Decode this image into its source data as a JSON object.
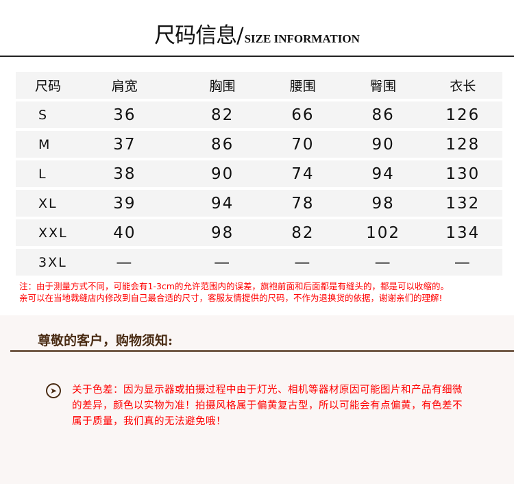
{
  "title": {
    "zh": "尺码信息/",
    "en": "SIZE INFORMATION"
  },
  "table": {
    "headers": [
      "尺码",
      "肩宽",
      "胸围",
      "腰围",
      "臀围",
      "衣长"
    ],
    "rows": [
      [
        "S",
        "36",
        "82",
        "66",
        "86",
        "126"
      ],
      [
        "M",
        "37",
        "86",
        "70",
        "90",
        "128"
      ],
      [
        "L",
        "38",
        "90",
        "74",
        "94",
        "130"
      ],
      [
        "XL",
        "39",
        "94",
        "78",
        "98",
        "132"
      ],
      [
        "XXL",
        "40",
        "98",
        "82",
        "102",
        "134"
      ],
      [
        "3XL",
        "—",
        "—",
        "—",
        "—",
        "—"
      ]
    ]
  },
  "note": {
    "line1": "注：由于测量方式不同，可能会有1-3cm的允许范围内的误差，旗袍前面和后面都是有缝头的，都是可以收缩的。",
    "line2": "亲可以在当地裁缝店内修改到自己最合适的尺寸，客服友情提供的尺码，不作为退换货的依据，谢谢亲们的理解!"
  },
  "notice": {
    "heading": "尊敬的客户，购物须知:",
    "icon": "chevron-circle-right-icon",
    "text": "关于色差：因为显示器或拍摄过程中由于灯光、相机等器材原因可能图片和产品有细微的差异，颜色以实物为准！拍摄风格属于偏黄复古型，所以可能会有点偏黄，有色差不属于质量，我们真的无法避免哦！"
  },
  "colors": {
    "accent": "#4a2c14",
    "warning": "#ff0000"
  }
}
